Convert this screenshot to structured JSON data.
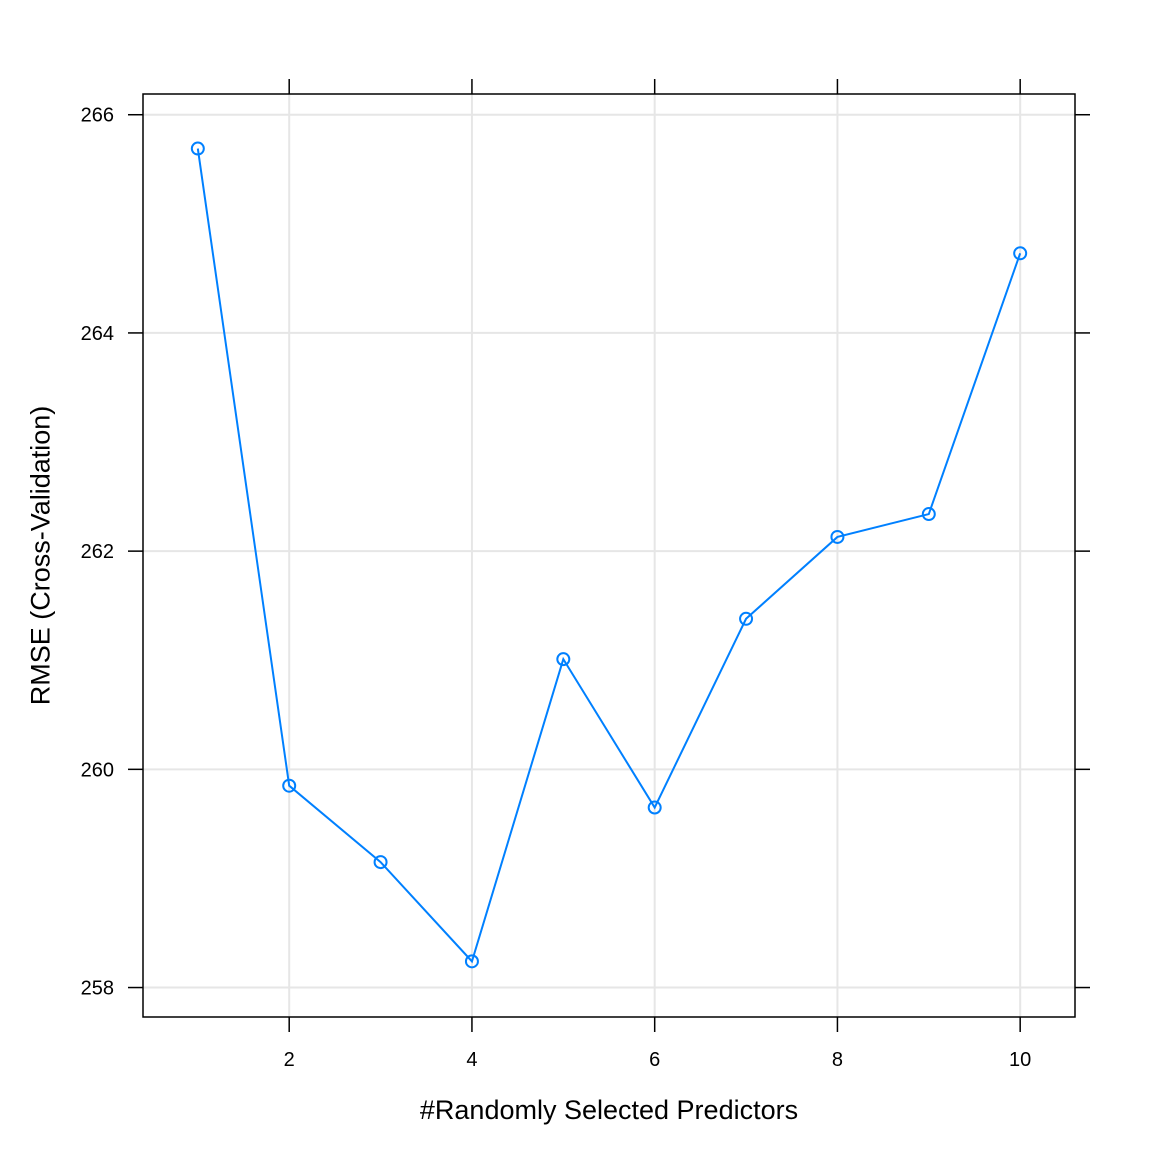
{
  "chart_data": {
    "type": "line",
    "title": "",
    "xlabel": "#Randomly Selected Predictors",
    "ylabel": "RMSE (Cross-Validation)",
    "x": [
      1,
      2,
      3,
      4,
      5,
      6,
      7,
      8,
      9,
      10
    ],
    "series": [
      {
        "values": [
          265.69,
          259.85,
          259.15,
          258.24,
          261.01,
          259.65,
          261.38,
          262.13,
          262.34,
          264.73
        ]
      }
    ],
    "xlim": [
      0.4,
      10.6
    ],
    "ylim": [
      257.73,
      266.19
    ],
    "xticks": [
      2,
      4,
      6,
      8,
      10
    ],
    "yticks": [
      258,
      260,
      262,
      264,
      266
    ],
    "xtick_labels": [
      "2",
      "4",
      "6",
      "8",
      "10"
    ],
    "ytick_labels": [
      "258",
      "260",
      "262",
      "264",
      "266"
    ],
    "grid": true,
    "marker": "open-circle",
    "colors": {
      "series": "#0080ff",
      "grid": "#e6e6e6",
      "frame": "#000000"
    }
  }
}
